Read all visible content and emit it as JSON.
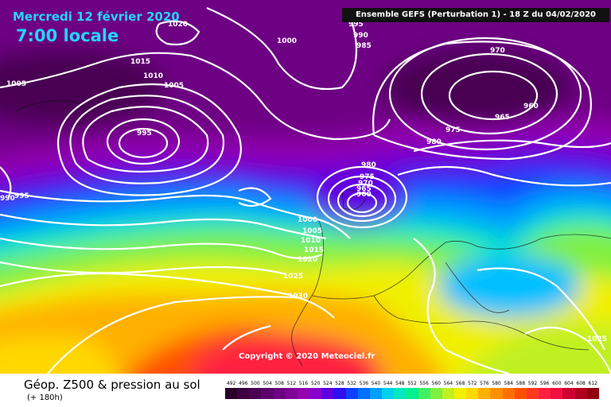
{
  "header": {
    "date": "Mercredi 12 février 2020",
    "local_time": "7:00 locale",
    "run_info": "Ensemble GEFS (Perturbation 1) - 18 Z du 04/02/2020",
    "copyright": "Copyright © 2020 Meteociel.fr"
  },
  "footer": {
    "title": "Géop. Z500 & pression au sol",
    "forecast_hour": "(+ 180h)"
  },
  "legend": {
    "values": [
      "492",
      "496",
      "500",
      "504",
      "508",
      "512",
      "516",
      "520",
      "524",
      "528",
      "532",
      "536",
      "540",
      "544",
      "548",
      "552",
      "556",
      "560",
      "564",
      "568",
      "572",
      "576",
      "580",
      "584",
      "588",
      "592",
      "596",
      "600",
      "604",
      "608",
      "612"
    ],
    "colors": [
      "#2a002a",
      "#3d0040",
      "#4a0052",
      "#5c006e",
      "#6e0084",
      "#80009a",
      "#9200b0",
      "#8800cc",
      "#6000e0",
      "#3010f0",
      "#1040ff",
      "#0070ff",
      "#00a0ff",
      "#00d0f0",
      "#00e8c0",
      "#00f090",
      "#40f060",
      "#80f040",
      "#c0f020",
      "#f0f000",
      "#ffd800",
      "#ffb000",
      "#ff9000",
      "#ff7000",
      "#ff5000",
      "#ff3820",
      "#ff2040",
      "#f01040",
      "#d00030",
      "#b00020",
      "#900010"
    ]
  },
  "isobar_labels": [
    "1020",
    "1000",
    "995",
    "990",
    "985",
    "970",
    "1015",
    "1010",
    "1005",
    "1005",
    "960",
    "965",
    "975",
    "980",
    "980",
    "975",
    "970",
    "965",
    "960",
    "995",
    "990",
    "995",
    "1000",
    "1005",
    "1010",
    "1015",
    "1020",
    "1025",
    "1030",
    "1025"
  ]
}
